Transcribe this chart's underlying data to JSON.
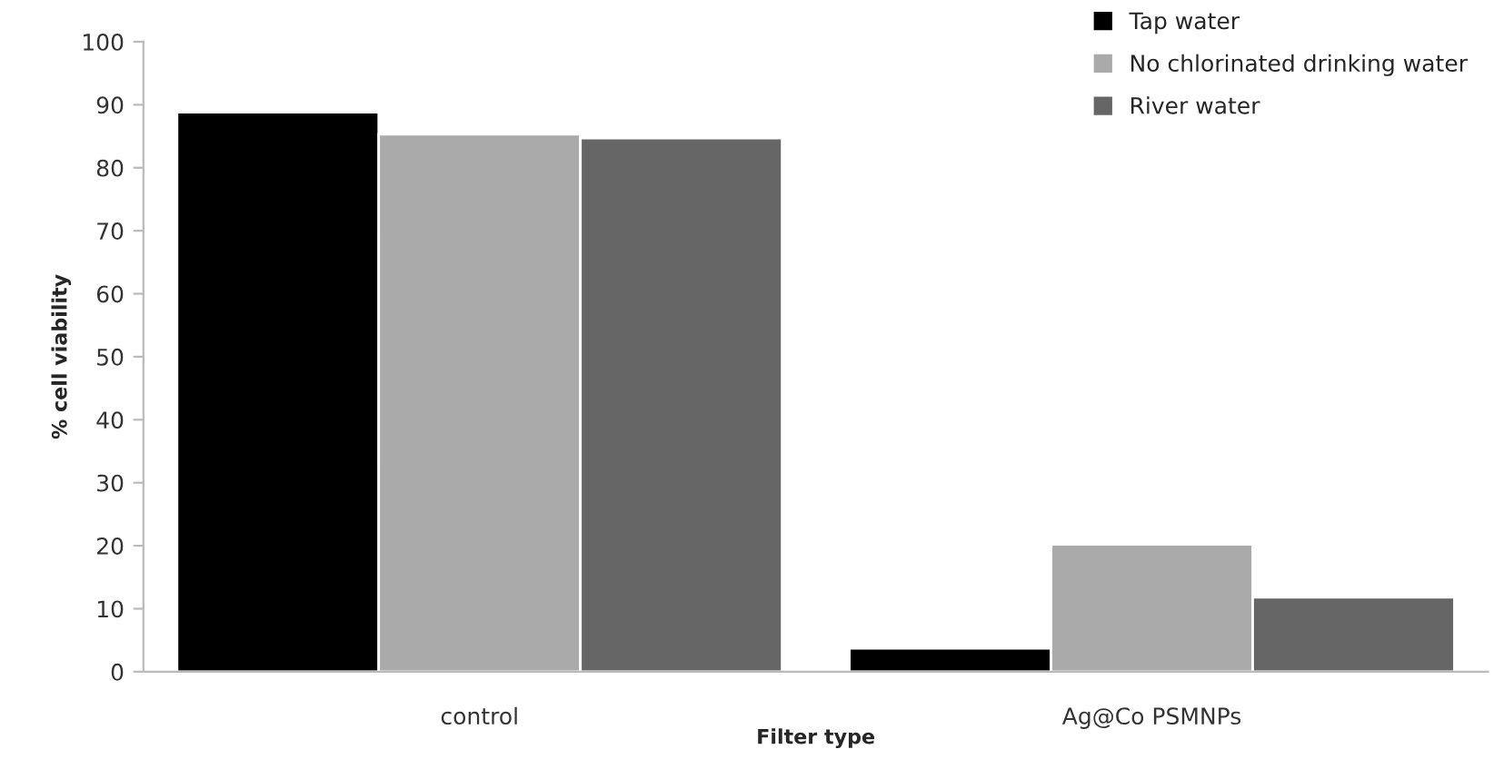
{
  "chart_data": {
    "type": "bar",
    "xlabel": "Filter type",
    "ylabel": "% cell viability",
    "categories": [
      "control",
      "Ag@Co PSMNPs"
    ],
    "series": [
      {
        "name": "Tap water",
        "color": "#000000",
        "values": [
          88.8,
          3.7
        ]
      },
      {
        "name": "No chlorinated drinking water",
        "color": "#aaaaaa",
        "values": [
          85.3,
          20.2
        ]
      },
      {
        "name": "River water",
        "color": "#666666",
        "values": [
          84.7,
          11.8
        ]
      }
    ],
    "ylim": [
      0,
      100
    ],
    "yticks": [
      0,
      10,
      20,
      30,
      40,
      50,
      60,
      70,
      80,
      90,
      100
    ],
    "grid": false,
    "legend": "top right"
  }
}
